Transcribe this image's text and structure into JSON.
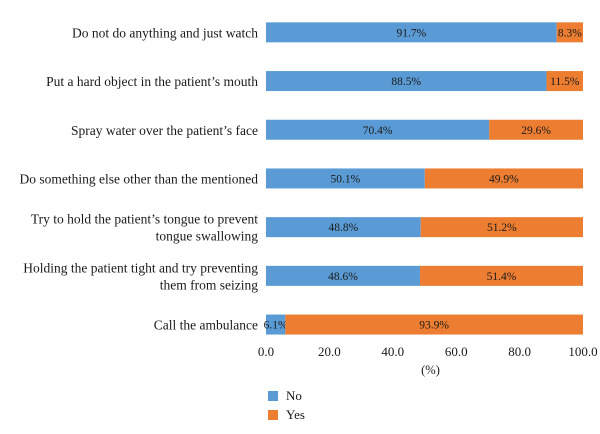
{
  "chart_data": {
    "type": "bar",
    "stacked": true,
    "orientation": "horizontal",
    "categories": [
      [
        "Do not do anything and just watch"
      ],
      [
        "Put a hard object in the patient’s mouth"
      ],
      [
        "Spray water over the patient’s face"
      ],
      [
        "Do something else other than the mentioned"
      ],
      [
        "Try to hold the patient’s tongue to prevent",
        "tongue swallowing"
      ],
      [
        "Holding the patient tight and try preventing",
        "them from seizing"
      ],
      [
        "Call the ambulance"
      ]
    ],
    "series": [
      {
        "name": "No",
        "color": "#5B9BD5",
        "values": [
          91.7,
          88.5,
          70.4,
          50.1,
          48.8,
          48.6,
          6.1
        ],
        "labels": [
          "91.7%",
          "88.5%",
          "70.4%",
          "50.1%",
          "48.8%",
          "48.6%",
          "6.1%"
        ]
      },
      {
        "name": "Yes",
        "color": "#ED7D31",
        "values": [
          8.3,
          11.5,
          29.6,
          49.9,
          51.2,
          51.4,
          93.9
        ],
        "labels": [
          "8.3%",
          "11.5%",
          "29.6%",
          "49.9%",
          "51.2%",
          "51.4%",
          "93.9%"
        ]
      }
    ],
    "xlabel": "(%)",
    "xlim": [
      0,
      100
    ],
    "xticks": [
      "0.0",
      "20.0",
      "40.0",
      "60.0",
      "80.0",
      "100.0"
    ],
    "grid": false,
    "legend_position": "bottom"
  }
}
